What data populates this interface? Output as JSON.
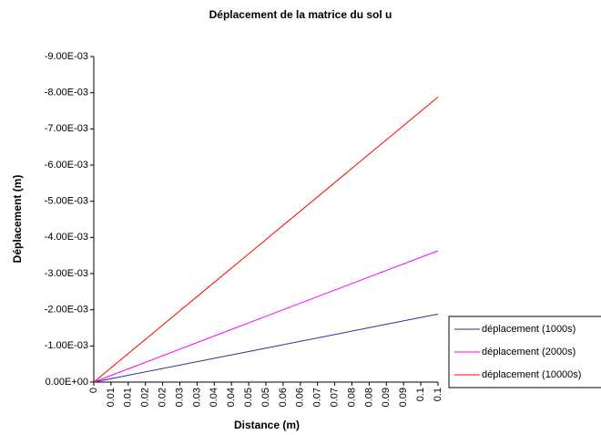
{
  "chart_data": {
    "type": "line",
    "title": "Déplacement de la matrice du sol u",
    "x_label": "Distance (m)",
    "y_label": "Déplacement (m)",
    "x": [
      0,
      0.05,
      0.1
    ],
    "series": [
      {
        "name": "déplacement (1000s)",
        "color": "#2e2e8c",
        "values": [
          0,
          -0.00094,
          -0.00188
        ]
      },
      {
        "name": "déplacement (2000s)",
        "color": "#ff00ff",
        "values": [
          0,
          -0.00182,
          -0.00363
        ]
      },
      {
        "name": "déplacement (10000s)",
        "color": "#ff0000",
        "values": [
          0,
          -0.00394,
          -0.00788
        ]
      }
    ],
    "xlim": [
      0,
      0.1
    ],
    "xticks": [
      0,
      {
        "value": 0.005,
        "label": "0.01"
      },
      0.01,
      {
        "value": 0.015,
        "label": "0.02"
      },
      0.02,
      {
        "value": 0.025,
        "label": "0.03"
      },
      0.03,
      {
        "value": 0.035,
        "label": "0.04"
      },
      0.04,
      {
        "value": 0.045,
        "label": "0.05"
      },
      0.05,
      {
        "value": 0.055,
        "label": "0.06"
      },
      0.06,
      {
        "value": 0.065,
        "label": "0.07"
      },
      0.07,
      {
        "value": 0.075,
        "label": "0.08"
      },
      0.08,
      {
        "value": 0.085,
        "label": "0.09"
      },
      0.09,
      {
        "value": 0.095,
        "label": "0.1"
      },
      0.1
    ],
    "ylim": [
      0,
      -0.009
    ],
    "yticks": [
      {
        "value": 0,
        "label": "0.00E+00"
      },
      {
        "value": -0.001,
        "label": "-1.00E-03"
      },
      {
        "value": -0.002,
        "label": "-2.00E-03"
      },
      {
        "value": -0.003,
        "label": "-3.00E-03"
      },
      {
        "value": -0.004,
        "label": "-4.00E-03"
      },
      {
        "value": -0.005,
        "label": "-5.00E-03"
      },
      {
        "value": -0.006,
        "label": "-6.00E-03"
      },
      {
        "value": -0.007,
        "label": "-7.00E-03"
      },
      {
        "value": -0.008,
        "label": "-8.00E-03"
      },
      {
        "value": -0.009,
        "label": "-9.00E-03"
      }
    ],
    "legend": "right"
  }
}
